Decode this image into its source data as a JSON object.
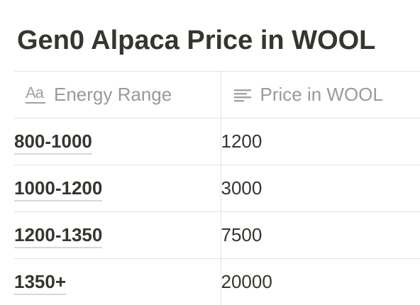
{
  "title": "Gen0 Alpaca Price in WOOL",
  "table": {
    "columns": [
      {
        "label": "Energy Range",
        "icon": "text-property-icon"
      },
      {
        "label": "Price in WOOL",
        "icon": "text-lines-icon"
      }
    ],
    "rows": [
      {
        "energy": "800-1000",
        "price": "1200"
      },
      {
        "energy": "1000-1200",
        "price": "3000"
      },
      {
        "energy": "1200-1350",
        "price": "7500"
      },
      {
        "energy": "1350+",
        "price": "20000"
      }
    ]
  }
}
